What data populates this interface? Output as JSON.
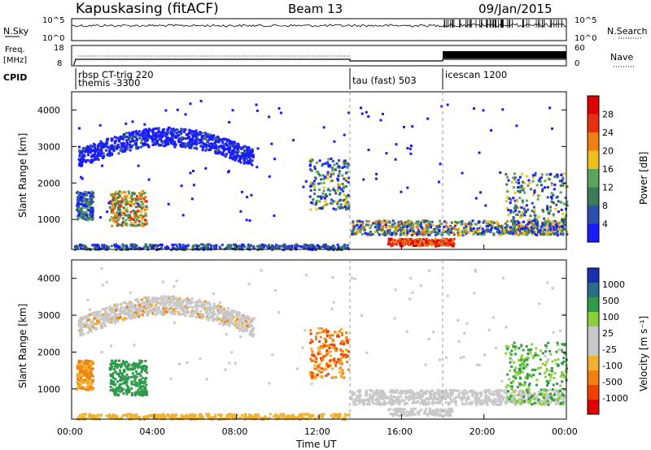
{
  "header": {
    "station": "Kapuskasing (fitACF)",
    "beam": "Beam 13",
    "date": "09/Jan/2015"
  },
  "panels": {
    "nsky": {
      "left_label": "N.Sky",
      "right_label": "N.Search",
      "ticks_left": [
        "10^5",
        "10^0"
      ],
      "ticks_right": [
        "10^5",
        "10^0"
      ]
    },
    "freq": {
      "left_label_1": "Freq.",
      "left_label_2": "[MHz]",
      "ticks_left": [
        "18",
        "8"
      ],
      "ticks_right": [
        "60",
        "0"
      ],
      "right_label": "Nave"
    },
    "cpid": {
      "label": "CPID",
      "segments": [
        {
          "name": "rbsp CT-trig 220",
          "start_h": 0.0,
          "end_h": 13.5
        },
        {
          "name": "themis -3300",
          "start_h": 0.0,
          "end_h": 13.5
        },
        {
          "name": "tau (fast) 503",
          "start_h": 13.5,
          "end_h": 18.0
        },
        {
          "name": "icescan 1200",
          "start_h": 18.0,
          "end_h": 24.0
        }
      ]
    }
  },
  "colors": {
    "power_scale": [
      "#1a1aff",
      "#2a4fae",
      "#3d7a5a",
      "#5aa55a",
      "#f0c020",
      "#f08010",
      "#e83010",
      "#e00000"
    ],
    "velocity_scale": [
      "#e00000",
      "#f04000",
      "#f08010",
      "#f0b030",
      "#c8c8c8",
      "#c8c8c8",
      "#8ccf3a",
      "#2f9a4a",
      "#2a6d8a",
      "#1a2fb0"
    ]
  },
  "chart_data": [
    {
      "type": "heatmap",
      "name": "power",
      "xlabel": "Time UT",
      "ylabel": "Slant Range [km]",
      "colorbar_label": "Power [dB]",
      "colorbar_ticks": [
        "4",
        "8",
        "12",
        "16",
        "20",
        "24",
        "28"
      ],
      "xlim_hours": [
        0,
        24
      ],
      "ylim_km": [
        180,
        4500
      ],
      "y_ticks": [
        "4000",
        "3000",
        "2000",
        "1000"
      ],
      "regions": [
        {
          "t0": 0.3,
          "t1": 8.8,
          "r0": 2300,
          "r1": 3300,
          "level": 0,
          "desc": "arc band"
        },
        {
          "t0": 0.2,
          "t1": 1.0,
          "r0": 1000,
          "r1": 1800,
          "level": 3
        },
        {
          "t0": 1.8,
          "t1": 3.6,
          "r0": 850,
          "r1": 1800,
          "level": 5
        },
        {
          "t0": 11.5,
          "t1": 13.4,
          "r0": 1300,
          "r1": 2700,
          "level": 3
        },
        {
          "t0": 13.5,
          "t1": 23.9,
          "r0": 600,
          "r1": 1000,
          "level": 4
        },
        {
          "t0": 15.3,
          "t1": 18.5,
          "r0": 300,
          "r1": 500,
          "level": 7
        },
        {
          "t0": 21.0,
          "t1": 24.0,
          "r0": 600,
          "r1": 2300,
          "level": 3
        }
      ]
    },
    {
      "type": "heatmap",
      "name": "velocity",
      "xlabel": "Time UT",
      "ylabel": "Slant Range [km]",
      "colorbar_label": "Velocity [m s⁻¹]",
      "colorbar_ticks": [
        "1000",
        "500",
        "100",
        "25",
        "-25",
        "-100",
        "-500",
        "-1000"
      ],
      "xlim_hours": [
        0,
        24
      ],
      "ylim_km": [
        180,
        4500
      ],
      "y_ticks": [
        "4000",
        "3000",
        "2000",
        "1000"
      ],
      "x_ticks": [
        "00:00",
        "04:00",
        "08:00",
        "12:00",
        "16:00",
        "20:00",
        "00:00"
      ]
    }
  ]
}
